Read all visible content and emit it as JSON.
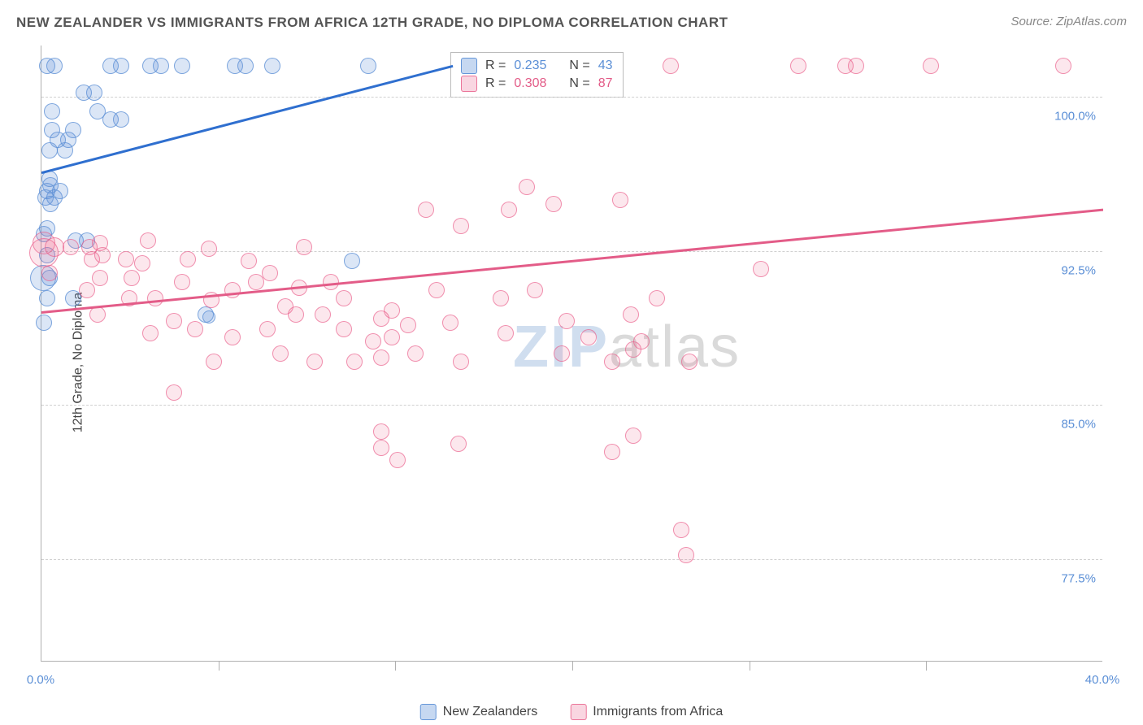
{
  "title": "NEW ZEALANDER VS IMMIGRANTS FROM AFRICA 12TH GRADE, NO DIPLOMA CORRELATION CHART",
  "source": "Source: ZipAtlas.com",
  "y_axis_label": "12th Grade, No Diploma",
  "watermark": {
    "zip": "ZIP",
    "atlas": "atlas"
  },
  "chart": {
    "type": "scatter",
    "xlim": [
      0,
      40
    ],
    "ylim": [
      72.5,
      102.5
    ],
    "x_ticks": [
      0.0,
      40.0
    ],
    "x_tick_labels": [
      "0.0%",
      "40.0%"
    ],
    "x_minor_ticks": [
      6.667,
      13.333,
      20.0,
      26.667,
      33.333
    ],
    "y_gridlines": [
      77.5,
      85.0,
      92.5,
      100.0
    ],
    "y_tick_labels": [
      "77.5%",
      "85.0%",
      "92.5%",
      "100.0%"
    ],
    "background_color": "#ffffff",
    "grid_color": "#d0d0d0",
    "axis_color": "#b0b0b0",
    "label_color": "#5b8fd6",
    "marker_radius_default": 10,
    "series": [
      {
        "name": "New Zealanders",
        "color_fill": "rgba(91,143,214,0.22)",
        "color_stroke": "rgba(91,143,214,0.75)",
        "R": "0.235",
        "N": "43",
        "trend": {
          "x1": 0,
          "y1": 96.3,
          "x2": 15.5,
          "y2": 101.5,
          "color": "#2f6fcf",
          "width": 3
        },
        "points": [
          {
            "x": 0.2,
            "y": 101.5,
            "r": 10
          },
          {
            "x": 0.5,
            "y": 101.5,
            "r": 10
          },
          {
            "x": 2.6,
            "y": 101.5,
            "r": 10
          },
          {
            "x": 3.0,
            "y": 101.5,
            "r": 10
          },
          {
            "x": 4.1,
            "y": 101.5,
            "r": 10
          },
          {
            "x": 4.5,
            "y": 101.5,
            "r": 10
          },
          {
            "x": 5.3,
            "y": 101.5,
            "r": 10
          },
          {
            "x": 7.3,
            "y": 101.5,
            "r": 10
          },
          {
            "x": 7.7,
            "y": 101.5,
            "r": 10
          },
          {
            "x": 8.7,
            "y": 101.5,
            "r": 10
          },
          {
            "x": 12.3,
            "y": 101.5,
            "r": 10
          },
          {
            "x": 1.6,
            "y": 100.2,
            "r": 10
          },
          {
            "x": 2.0,
            "y": 100.2,
            "r": 10
          },
          {
            "x": 0.4,
            "y": 99.3,
            "r": 10
          },
          {
            "x": 2.1,
            "y": 99.3,
            "r": 10
          },
          {
            "x": 2.6,
            "y": 98.9,
            "r": 10
          },
          {
            "x": 3.0,
            "y": 98.9,
            "r": 10
          },
          {
            "x": 0.4,
            "y": 98.4,
            "r": 10
          },
          {
            "x": 1.2,
            "y": 98.4,
            "r": 10
          },
          {
            "x": 0.6,
            "y": 97.9,
            "r": 10
          },
          {
            "x": 1.0,
            "y": 97.9,
            "r": 10
          },
          {
            "x": 0.3,
            "y": 97.4,
            "r": 10
          },
          {
            "x": 0.9,
            "y": 97.4,
            "r": 10
          },
          {
            "x": 0.3,
            "y": 96.0,
            "r": 10
          },
          {
            "x": 0.35,
            "y": 95.7,
            "r": 10
          },
          {
            "x": 0.2,
            "y": 95.4,
            "r": 10
          },
          {
            "x": 0.15,
            "y": 95.1,
            "r": 10
          },
          {
            "x": 0.35,
            "y": 94.8,
            "r": 10
          },
          {
            "x": 0.5,
            "y": 95.1,
            "r": 10
          },
          {
            "x": 0.7,
            "y": 95.4,
            "r": 10
          },
          {
            "x": 0.2,
            "y": 93.6,
            "r": 10
          },
          {
            "x": 0.1,
            "y": 93.3,
            "r": 10
          },
          {
            "x": 1.3,
            "y": 93.0,
            "r": 10
          },
          {
            "x": 1.7,
            "y": 93.0,
            "r": 10
          },
          {
            "x": 0.2,
            "y": 92.3,
            "r": 10
          },
          {
            "x": 0.05,
            "y": 91.2,
            "r": 16
          },
          {
            "x": 0.3,
            "y": 91.2,
            "r": 10
          },
          {
            "x": 11.7,
            "y": 92.0,
            "r": 10
          },
          {
            "x": 0.2,
            "y": 90.2,
            "r": 10
          },
          {
            "x": 1.2,
            "y": 90.2,
            "r": 10
          },
          {
            "x": 6.2,
            "y": 89.4,
            "r": 10
          },
          {
            "x": 6.3,
            "y": 89.3,
            "r": 8
          },
          {
            "x": 0.1,
            "y": 89.0,
            "r": 10
          }
        ]
      },
      {
        "name": "Immigrants from Africa",
        "color_fill": "rgba(233,92,136,0.15)",
        "color_stroke": "rgba(233,92,136,0.65)",
        "R": "0.308",
        "N": "87",
        "trend": {
          "x1": 0,
          "y1": 89.5,
          "x2": 40,
          "y2": 94.5,
          "color": "#e35c88",
          "width": 3
        },
        "points": [
          {
            "x": 23.7,
            "y": 101.5,
            "r": 10
          },
          {
            "x": 28.5,
            "y": 101.5,
            "r": 10
          },
          {
            "x": 30.3,
            "y": 101.5,
            "r": 10
          },
          {
            "x": 30.7,
            "y": 101.5,
            "r": 10
          },
          {
            "x": 33.5,
            "y": 101.5,
            "r": 10
          },
          {
            "x": 38.5,
            "y": 101.5,
            "r": 10
          },
          {
            "x": 18.3,
            "y": 95.6,
            "r": 10
          },
          {
            "x": 19.3,
            "y": 94.8,
            "r": 10
          },
          {
            "x": 14.5,
            "y": 94.5,
            "r": 10
          },
          {
            "x": 17.6,
            "y": 94.5,
            "r": 10
          },
          {
            "x": 21.8,
            "y": 95.0,
            "r": 10
          },
          {
            "x": 15.8,
            "y": 93.7,
            "r": 10
          },
          {
            "x": 27.1,
            "y": 91.6,
            "r": 10
          },
          {
            "x": 0.1,
            "y": 92.9,
            "r": 14
          },
          {
            "x": 0.1,
            "y": 92.4,
            "r": 18
          },
          {
            "x": 0.5,
            "y": 92.7,
            "r": 12
          },
          {
            "x": 1.1,
            "y": 92.7,
            "r": 10
          },
          {
            "x": 1.8,
            "y": 92.7,
            "r": 10
          },
          {
            "x": 2.2,
            "y": 92.9,
            "r": 10
          },
          {
            "x": 4.0,
            "y": 93.0,
            "r": 10
          },
          {
            "x": 1.9,
            "y": 92.1,
            "r": 10
          },
          {
            "x": 2.3,
            "y": 92.3,
            "r": 10
          },
          {
            "x": 3.2,
            "y": 92.1,
            "r": 10
          },
          {
            "x": 3.8,
            "y": 91.9,
            "r": 10
          },
          {
            "x": 5.5,
            "y": 92.1,
            "r": 10
          },
          {
            "x": 6.3,
            "y": 92.6,
            "r": 10
          },
          {
            "x": 7.8,
            "y": 92.0,
            "r": 10
          },
          {
            "x": 9.9,
            "y": 92.7,
            "r": 10
          },
          {
            "x": 0.3,
            "y": 91.4,
            "r": 10
          },
          {
            "x": 2.2,
            "y": 91.2,
            "r": 10
          },
          {
            "x": 3.4,
            "y": 91.2,
            "r": 10
          },
          {
            "x": 5.3,
            "y": 91.0,
            "r": 10
          },
          {
            "x": 8.1,
            "y": 91.0,
            "r": 10
          },
          {
            "x": 8.6,
            "y": 91.4,
            "r": 10
          },
          {
            "x": 1.7,
            "y": 90.6,
            "r": 10
          },
          {
            "x": 3.3,
            "y": 90.2,
            "r": 10
          },
          {
            "x": 4.3,
            "y": 90.2,
            "r": 10
          },
          {
            "x": 6.4,
            "y": 90.1,
            "r": 10
          },
          {
            "x": 7.2,
            "y": 90.6,
            "r": 10
          },
          {
            "x": 9.7,
            "y": 90.7,
            "r": 10
          },
          {
            "x": 10.9,
            "y": 91.0,
            "r": 10
          },
          {
            "x": 11.4,
            "y": 90.2,
            "r": 10
          },
          {
            "x": 14.9,
            "y": 90.6,
            "r": 10
          },
          {
            "x": 17.3,
            "y": 90.2,
            "r": 10
          },
          {
            "x": 18.6,
            "y": 90.6,
            "r": 10
          },
          {
            "x": 23.2,
            "y": 90.2,
            "r": 10
          },
          {
            "x": 2.1,
            "y": 89.4,
            "r": 10
          },
          {
            "x": 5.0,
            "y": 89.1,
            "r": 10
          },
          {
            "x": 9.6,
            "y": 89.4,
            "r": 10
          },
          {
            "x": 9.2,
            "y": 89.8,
            "r": 10
          },
          {
            "x": 10.6,
            "y": 89.4,
            "r": 10
          },
          {
            "x": 12.8,
            "y": 89.2,
            "r": 10
          },
          {
            "x": 13.2,
            "y": 89.6,
            "r": 10
          },
          {
            "x": 4.1,
            "y": 88.5,
            "r": 10
          },
          {
            "x": 5.8,
            "y": 88.7,
            "r": 10
          },
          {
            "x": 7.2,
            "y": 88.3,
            "r": 10
          },
          {
            "x": 8.5,
            "y": 88.7,
            "r": 10
          },
          {
            "x": 11.4,
            "y": 88.7,
            "r": 10
          },
          {
            "x": 12.5,
            "y": 88.1,
            "r": 10
          },
          {
            "x": 13.2,
            "y": 88.3,
            "r": 10
          },
          {
            "x": 13.8,
            "y": 88.9,
            "r": 10
          },
          {
            "x": 15.4,
            "y": 89.0,
            "r": 10
          },
          {
            "x": 17.5,
            "y": 88.5,
            "r": 10
          },
          {
            "x": 19.8,
            "y": 89.1,
            "r": 10
          },
          {
            "x": 20.6,
            "y": 88.3,
            "r": 10
          },
          {
            "x": 22.2,
            "y": 89.4,
            "r": 10
          },
          {
            "x": 22.6,
            "y": 88.1,
            "r": 10
          },
          {
            "x": 22.3,
            "y": 87.7,
            "r": 10
          },
          {
            "x": 9.0,
            "y": 87.5,
            "r": 10
          },
          {
            "x": 14.1,
            "y": 87.5,
            "r": 10
          },
          {
            "x": 6.5,
            "y": 87.1,
            "r": 10
          },
          {
            "x": 10.3,
            "y": 87.1,
            "r": 10
          },
          {
            "x": 11.8,
            "y": 87.1,
            "r": 10
          },
          {
            "x": 12.8,
            "y": 87.3,
            "r": 10
          },
          {
            "x": 15.8,
            "y": 87.1,
            "r": 10
          },
          {
            "x": 19.6,
            "y": 87.5,
            "r": 10
          },
          {
            "x": 21.5,
            "y": 87.1,
            "r": 10
          },
          {
            "x": 24.4,
            "y": 87.1,
            "r": 10
          },
          {
            "x": 5.0,
            "y": 85.6,
            "r": 10
          },
          {
            "x": 12.8,
            "y": 83.7,
            "r": 10
          },
          {
            "x": 12.8,
            "y": 82.9,
            "r": 10
          },
          {
            "x": 15.7,
            "y": 83.1,
            "r": 10
          },
          {
            "x": 21.5,
            "y": 82.7,
            "r": 10
          },
          {
            "x": 22.3,
            "y": 83.5,
            "r": 10
          },
          {
            "x": 13.4,
            "y": 82.3,
            "r": 10
          },
          {
            "x": 24.1,
            "y": 78.9,
            "r": 10
          },
          {
            "x": 24.3,
            "y": 77.7,
            "r": 10
          }
        ]
      }
    ],
    "legend_top": {
      "r_label": "R =",
      "n_label": "N ="
    },
    "legend_bottom": {
      "series1": "New Zealanders",
      "series2": "Immigrants from Africa"
    }
  }
}
